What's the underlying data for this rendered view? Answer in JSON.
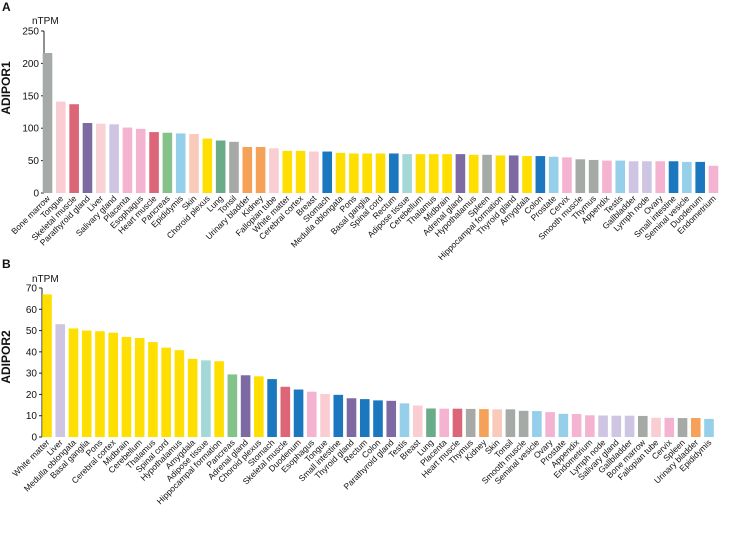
{
  "chart_data": [
    {
      "panel": "A",
      "type": "bar",
      "unit": "nTPM",
      "ylabel": "ADIPOR1",
      "ylim": [
        0,
        250
      ],
      "yticks": [
        0,
        50,
        100,
        150,
        200,
        250
      ],
      "categories": [
        "Bone marrow",
        "Tongue",
        "Skeletal muscle",
        "Parathyroid gland",
        "Liver",
        "Salivary gland",
        "Placenta",
        "Esophagus",
        "Heart muscle",
        "Pancreas",
        "Epididymis",
        "Skin",
        "Choroid plexus",
        "Lung",
        "Tonsil",
        "Urinary bladder",
        "Kidney",
        "Fallopian tube",
        "White matter",
        "Cerebral cortex",
        "Breast",
        "Stomach",
        "Medulla oblongata",
        "Pons",
        "Basal ganglia",
        "Spinal cord",
        "Rectum",
        "Adipose tissue",
        "Cerebellum",
        "Thalamus",
        "Midbrain",
        "Adrenal gland",
        "Hypothalamus",
        "Spleen",
        "Hippocampal formation",
        "Thyroid gland",
        "Amygdala",
        "Colon",
        "Prostate",
        "Cervix",
        "Smooth muscle",
        "Thymus",
        "Appendix",
        "Testis",
        "Gallbladder",
        "Lymph node",
        "Ovary",
        "Small intestine",
        "Seminal vesicle",
        "Duodenum",
        "Endometrium"
      ],
      "values": [
        216,
        141,
        137,
        108,
        107,
        106,
        101,
        99,
        94,
        93,
        92,
        91,
        84,
        81,
        79,
        71,
        71,
        69,
        65,
        65,
        64,
        64,
        62,
        61,
        61,
        61,
        61,
        60,
        60,
        60,
        60,
        60,
        59,
        59,
        58,
        58,
        57,
        57,
        56,
        55,
        52,
        51,
        50,
        50,
        49,
        49,
        49,
        49,
        48,
        48,
        42
      ],
      "colors": [
        "#a6aaa6",
        "#f9cdd2",
        "#dd6578",
        "#7d6aa3",
        "#f8d2d4",
        "#cec5e3",
        "#f5b3d2",
        "#f5b3d2",
        "#dd6578",
        "#85c289",
        "#95cfe9",
        "#f9cab9",
        "#ffde02",
        "#6aac8a",
        "#a6aaa6",
        "#f5a158",
        "#f5a158",
        "#f9cdd2",
        "#ffde02",
        "#ffde02",
        "#f9cdd2",
        "#1c78be",
        "#ffde02",
        "#ffde02",
        "#ffde02",
        "#ffde02",
        "#1c78be",
        "#a3d8d7",
        "#ffde02",
        "#ffde02",
        "#ffde02",
        "#7d6aa3",
        "#ffde02",
        "#a6aaa6",
        "#ffde02",
        "#7d6aa3",
        "#ffde02",
        "#1c78be",
        "#95cfe9",
        "#f5b3d2",
        "#a6aaa6",
        "#a6aaa6",
        "#f5b3d2",
        "#95cfe9",
        "#cec5e3",
        "#cec5e3",
        "#f5b3d2",
        "#1c78be",
        "#95cfe9",
        "#1c78be",
        "#f5b3d2"
      ]
    },
    {
      "panel": "B",
      "type": "bar",
      "unit": "nTPM",
      "ylabel": "ADIPOR2",
      "ylim": [
        0,
        70
      ],
      "yticks": [
        0,
        10,
        20,
        30,
        40,
        50,
        60,
        70
      ],
      "categories": [
        "White matter",
        "Liver",
        "Medulla oblongata",
        "Basal ganglia",
        "Pons",
        "Cerebral cortex",
        "Midbrain",
        "Cerebellum",
        "Thalamus",
        "Spinal cord",
        "Hypothalamus",
        "Amygdala",
        "Adipose tissue",
        "Hippocampal formation",
        "Pancreas",
        "Adrenal gland",
        "Choroid plexus",
        "Stomach",
        "Skeletal muscle",
        "Duodenum",
        "Esophagus",
        "Tongue",
        "Small intestine",
        "Thyroid gland",
        "Rectum",
        "Colon",
        "Parathyroid gland",
        "Testis",
        "Breast",
        "Lung",
        "Placenta",
        "Heart muscle",
        "Thymus",
        "Kidney",
        "Skin",
        "Tonsil",
        "Smooth muscle",
        "Seminal vesicle",
        "Ovary",
        "Prostate",
        "Appendix",
        "Endometrium",
        "Lymph node",
        "Salivary gland",
        "Gallbladder",
        "Bone marrow",
        "Fallopian tube",
        "Cervix",
        "Spleen",
        "Urinary bladder",
        "Epididymis"
      ],
      "values": [
        67,
        53,
        51,
        50,
        49.7,
        49,
        47,
        46.5,
        44.6,
        42,
        40.8,
        36.7,
        36,
        35.6,
        29.4,
        29,
        28.5,
        27.2,
        23.6,
        22.3,
        21.3,
        20.2,
        19.8,
        18.2,
        17.8,
        17.2,
        17,
        15.8,
        14.8,
        13.4,
        13.3,
        13.3,
        13.2,
        13.1,
        13,
        13,
        12.3,
        12.2,
        11.7,
        10.9,
        10.8,
        10.2,
        10.1,
        10,
        10,
        9.9,
        9,
        9,
        8.9,
        8.9,
        8.5
      ],
      "colors": [
        "#ffde02",
        "#cec5e3",
        "#ffde02",
        "#ffde02",
        "#ffde02",
        "#ffde02",
        "#ffde02",
        "#ffde02",
        "#ffde02",
        "#ffde02",
        "#ffde02",
        "#ffde02",
        "#a3d8d7",
        "#ffde02",
        "#85c289",
        "#7d6aa3",
        "#ffde02",
        "#1c78be",
        "#dd6578",
        "#1c78be",
        "#f5b3d2",
        "#f9cdd2",
        "#1c78be",
        "#7d6aa3",
        "#1c78be",
        "#1c78be",
        "#7d6aa3",
        "#95cfe9",
        "#f9cdd2",
        "#6aac8a",
        "#f5b3d2",
        "#dd6578",
        "#a6aaa6",
        "#f5a158",
        "#f9cab9",
        "#a6aaa6",
        "#a6aaa6",
        "#95cfe9",
        "#f5b3d2",
        "#95cfe9",
        "#f5b3d2",
        "#f5b3d2",
        "#cec5e3",
        "#cec5e3",
        "#cec5e3",
        "#a6aaa6",
        "#f9cdd2",
        "#f5b3d2",
        "#a6aaa6",
        "#f5a158",
        "#95cfe9"
      ]
    }
  ]
}
